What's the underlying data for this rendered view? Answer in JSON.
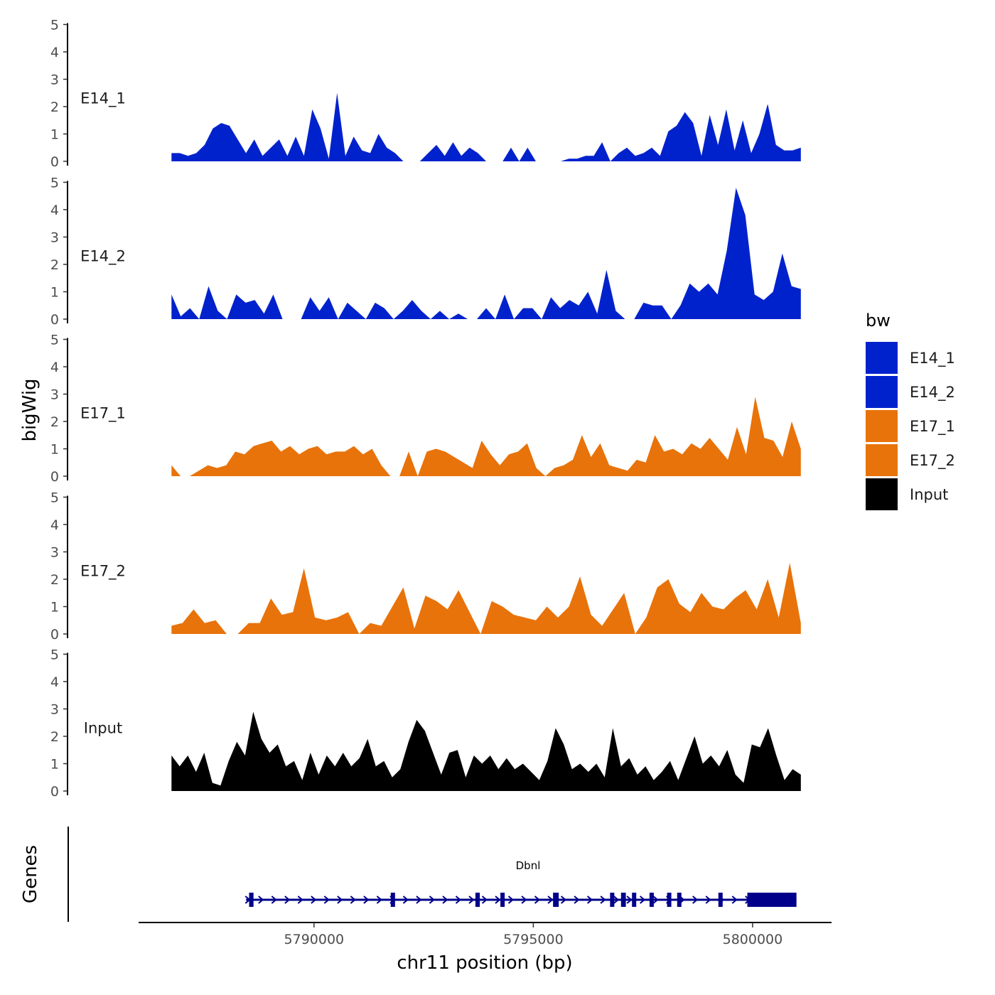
{
  "chart_data": {
    "type": "area",
    "ylabel": "bigWig",
    "xlabel": "chr11 position (bp)",
    "x_ticks": [
      5790000,
      5795000,
      5800000
    ],
    "x_tick_labels": [
      "5790000",
      "5795000",
      "5800000"
    ],
    "xlim": [
      5786000,
      5801800
    ],
    "data_x_range": [
      5786750,
      5801100
    ],
    "ylim": [
      0,
      5
    ],
    "y_ticks": [
      0,
      1,
      2,
      3,
      4,
      5
    ],
    "y_tick_labels": [
      "0",
      "1",
      "2",
      "3",
      "4",
      "5"
    ],
    "legend": {
      "title": "bw",
      "position": "right",
      "entries": [
        "E14_1",
        "E14_2",
        "E17_1",
        "E17_2",
        "Input"
      ]
    },
    "series": [
      {
        "name": "E14_1",
        "color": "#0022CC",
        "values": [
          0.3,
          0.3,
          0.2,
          0.3,
          0.6,
          1.2,
          1.4,
          1.3,
          0.8,
          0.3,
          0.8,
          0.2,
          0.5,
          0.8,
          0.2,
          0.9,
          0.2,
          1.9,
          1.2,
          0.1,
          2.5,
          0.2,
          0.9,
          0.4,
          0.3,
          1.0,
          0.5,
          0.3,
          0.0,
          0.0,
          0.0,
          0.3,
          0.6,
          0.2,
          0.7,
          0.2,
          0.5,
          0.3,
          0.0,
          0.0,
          0.0,
          0.5,
          0.0,
          0.5,
          0.0,
          0.0,
          0.0,
          0.0,
          0.1,
          0.1,
          0.2,
          0.2,
          0.7,
          0.0,
          0.3,
          0.5,
          0.2,
          0.3,
          0.5,
          0.2,
          1.1,
          1.3,
          1.8,
          1.4,
          0.2,
          1.7,
          0.6,
          1.9,
          0.4,
          1.5,
          0.3,
          1.0,
          2.1,
          0.6,
          0.4,
          0.4,
          0.5
        ]
      },
      {
        "name": "E14_2",
        "color": "#0022CC",
        "values": [
          0.9,
          0.1,
          0.4,
          0.0,
          1.2,
          0.3,
          0.0,
          0.9,
          0.6,
          0.7,
          0.2,
          0.9,
          0.0,
          0.0,
          0.0,
          0.8,
          0.3,
          0.8,
          0.0,
          0.6,
          0.3,
          0.0,
          0.6,
          0.4,
          0.0,
          0.3,
          0.7,
          0.3,
          0.0,
          0.3,
          0.0,
          0.2,
          0.0,
          0.0,
          0.4,
          0.0,
          0.9,
          0.0,
          0.4,
          0.4,
          0.0,
          0.8,
          0.4,
          0.7,
          0.5,
          1.0,
          0.2,
          1.8,
          0.3,
          0.0,
          0.0,
          0.6,
          0.5,
          0.5,
          0.0,
          0.5,
          1.3,
          1.0,
          1.3,
          0.9,
          2.5,
          4.8,
          3.8,
          0.9,
          0.7,
          1.0,
          2.4,
          1.2,
          1.1
        ]
      },
      {
        "name": "E17_1",
        "color": "#E8730A",
        "values": [
          0.4,
          0.0,
          0.0,
          0.2,
          0.4,
          0.3,
          0.4,
          0.9,
          0.8,
          1.1,
          1.2,
          1.3,
          0.9,
          1.1,
          0.8,
          1.0,
          1.1,
          0.8,
          0.9,
          0.9,
          1.1,
          0.8,
          1.0,
          0.4,
          0.0,
          0.0,
          0.9,
          0.0,
          0.9,
          1.0,
          0.9,
          0.7,
          0.5,
          0.3,
          1.3,
          0.8,
          0.4,
          0.8,
          0.9,
          1.2,
          0.3,
          0.0,
          0.3,
          0.4,
          0.6,
          1.5,
          0.7,
          1.2,
          0.4,
          0.3,
          0.2,
          0.6,
          0.5,
          1.5,
          0.9,
          1.0,
          0.8,
          1.2,
          1.0,
          1.4,
          1.0,
          0.6,
          1.8,
          0.8,
          2.9,
          1.4,
          1.3,
          0.7,
          2.0,
          1.0
        ]
      },
      {
        "name": "E17_2",
        "color": "#E8730A",
        "values": [
          0.3,
          0.4,
          0.9,
          0.4,
          0.5,
          0.0,
          0.0,
          0.4,
          0.4,
          1.3,
          0.7,
          0.8,
          2.4,
          0.6,
          0.5,
          0.6,
          0.8,
          0.0,
          0.4,
          0.3,
          1.0,
          1.7,
          0.2,
          1.4,
          1.2,
          0.9,
          1.6,
          0.8,
          0.0,
          1.2,
          1.0,
          0.7,
          0.6,
          0.5,
          1.0,
          0.6,
          1.0,
          2.1,
          0.7,
          0.3,
          0.9,
          1.5,
          0.0,
          0.6,
          1.7,
          2.0,
          1.1,
          0.8,
          1.5,
          1.0,
          0.9,
          1.3,
          1.6,
          0.9,
          2.0,
          0.6,
          2.6,
          0.4
        ]
      },
      {
        "name": "Input",
        "color": "#000000",
        "values": [
          1.3,
          0.9,
          1.3,
          0.7,
          1.4,
          0.3,
          0.2,
          1.1,
          1.8,
          1.3,
          2.9,
          1.9,
          1.4,
          1.7,
          0.9,
          1.1,
          0.4,
          1.4,
          0.6,
          1.3,
          0.9,
          1.4,
          0.9,
          1.2,
          1.9,
          0.9,
          1.1,
          0.5,
          0.8,
          1.8,
          2.6,
          2.2,
          1.4,
          0.6,
          1.4,
          1.5,
          0.5,
          1.3,
          1.0,
          1.3,
          0.8,
          1.2,
          0.8,
          1.0,
          0.7,
          0.4,
          1.1,
          2.3,
          1.7,
          0.8,
          1.0,
          0.7,
          1.0,
          0.5,
          2.3,
          0.9,
          1.2,
          0.6,
          0.9,
          0.4,
          0.7,
          1.1,
          0.4,
          1.2,
          2.0,
          1.0,
          1.3,
          0.9,
          1.5,
          0.6,
          0.3,
          1.7,
          1.6,
          2.3,
          1.3,
          0.4,
          0.8,
          0.6
        ]
      }
    ],
    "genes_track": {
      "label": "Genes",
      "gene_name": "Dbnl",
      "gene_color": "#00008B",
      "start": 5788450,
      "end": 5801000,
      "strand": "+",
      "exons": [
        [
          5788520,
          5788620
        ],
        [
          5791750,
          5791800
        ],
        [
          5793680,
          5793780
        ],
        [
          5794250,
          5794330
        ],
        [
          5795450,
          5795580
        ],
        [
          5796750,
          5796830
        ],
        [
          5797000,
          5797110
        ],
        [
          5797250,
          5797300
        ],
        [
          5797650,
          5797720
        ],
        [
          5798050,
          5798130
        ],
        [
          5798280,
          5798370
        ],
        [
          5799220,
          5799300
        ],
        [
          5799880,
          5801000
        ]
      ]
    }
  }
}
